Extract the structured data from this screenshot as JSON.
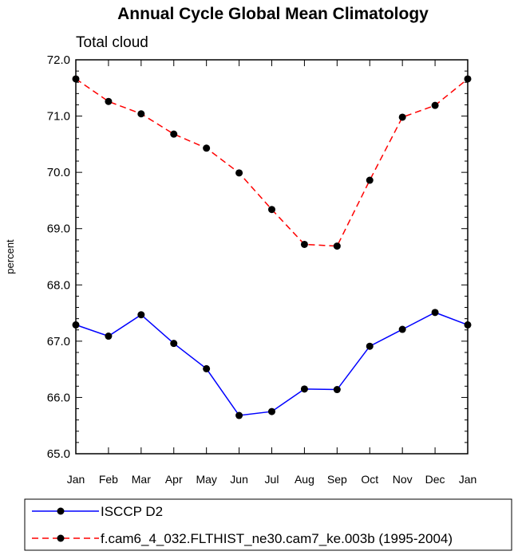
{
  "chart_data": {
    "type": "line",
    "title": "Annual Cycle Global Mean Climatology",
    "subtitle": "Total cloud",
    "xlabel": "",
    "ylabel": "percent",
    "categories": [
      "Jan",
      "Feb",
      "Mar",
      "Apr",
      "May",
      "Jun",
      "Jul",
      "Aug",
      "Sep",
      "Oct",
      "Nov",
      "Dec",
      "Jan"
    ],
    "ylim": [
      65.0,
      72.0
    ],
    "yticks": [
      "65.0",
      "66.0",
      "67.0",
      "68.0",
      "69.0",
      "70.0",
      "71.0",
      "72.0"
    ],
    "grid": false,
    "legend_position": "bottom",
    "series": [
      {
        "name": "ISCCP D2",
        "color": "#0000ff",
        "line_style": "solid",
        "marker": "filled-circle",
        "values": [
          67.29,
          67.09,
          67.47,
          66.96,
          66.51,
          65.68,
          65.75,
          66.15,
          66.14,
          66.91,
          67.21,
          67.51,
          67.29
        ]
      },
      {
        "name": "f.cam6_4_032.FLTHIST_ne30.cam7_ke.003b (1995-2004)",
        "color": "#ff0000",
        "line_style": "dashed",
        "marker": "filled-circle",
        "values": [
          71.66,
          71.26,
          71.04,
          70.68,
          70.43,
          69.99,
          69.34,
          68.72,
          68.69,
          69.86,
          70.98,
          71.19,
          71.66
        ]
      }
    ]
  }
}
